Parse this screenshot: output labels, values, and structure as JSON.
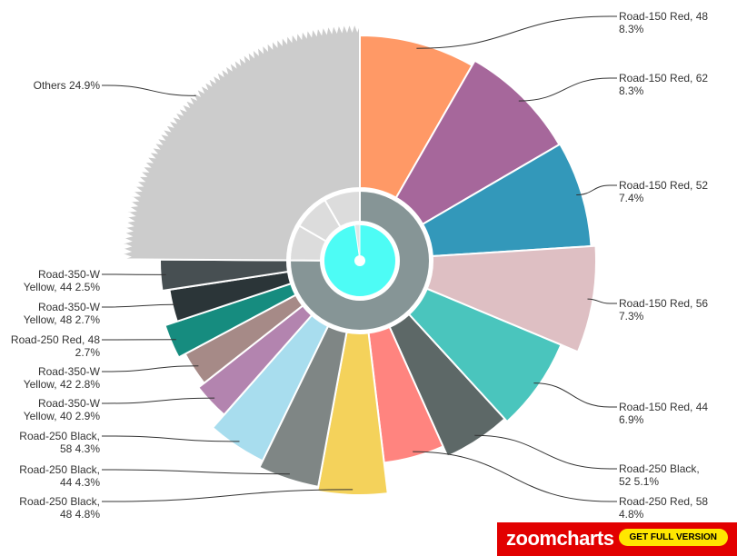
{
  "chart_data": {
    "type": "pie",
    "slices": [
      {
        "label": "Road-150 Red, 48",
        "value": 8.3,
        "color": "#FF9966"
      },
      {
        "label": "Road-150 Red, 62",
        "value": 8.3,
        "color": "#A6679B"
      },
      {
        "label": "Road-150 Red, 52",
        "value": 7.4,
        "color": "#3398BA"
      },
      {
        "label": "Road-150 Red, 56",
        "value": 7.3,
        "color": "#DEBFC3"
      },
      {
        "label": "Road-150 Red, 44",
        "value": 6.9,
        "color": "#4AC5BD"
      },
      {
        "label": "Road-250 Black, 52",
        "value": 5.1,
        "color": "#5D6867"
      },
      {
        "label": "Road-250 Red, 58",
        "value": 4.8,
        "color": "#FF847F"
      },
      {
        "label": "Road-250 Black, 48",
        "value": 4.8,
        "color": "#F4D25B"
      },
      {
        "label": "Road-250 Black, 44",
        "value": 4.3,
        "color": "#7F8685"
      },
      {
        "label": "Road-250 Black, 58",
        "value": 4.3,
        "color": "#A8DDEE"
      },
      {
        "label": "Road-350-W Yellow, 40",
        "value": 2.9,
        "color": "#B384AF"
      },
      {
        "label": "Road-350-W Yellow, 42",
        "value": 2.8,
        "color": "#A68A87"
      },
      {
        "label": "Road-250 Red, 48",
        "value": 2.7,
        "color": "#168C7F"
      },
      {
        "label": "Road-350-W Yellow, 48",
        "value": 2.7,
        "color": "#2B3538"
      },
      {
        "label": "Road-350-W Yellow, 44",
        "value": 2.5,
        "color": "#474F52"
      },
      {
        "label": "Others",
        "value": 24.9,
        "color": "#CCCCCC"
      }
    ],
    "labels": [
      {
        "lines": [
          "Road-150 Red, 48",
          "8.3%"
        ]
      },
      {
        "lines": [
          "Road-150 Red, 62",
          "8.3%"
        ]
      },
      {
        "lines": [
          "Road-150 Red, 52",
          "7.4%"
        ]
      },
      {
        "lines": [
          "Road-150 Red, 56",
          "7.3%"
        ]
      },
      {
        "lines": [
          "Road-150 Red, 44",
          "6.9%"
        ]
      },
      {
        "lines": [
          "Road-250 Black,",
          "52 5.1%"
        ]
      },
      {
        "lines": [
          "Road-250 Red, 58",
          "4.8%"
        ]
      },
      {
        "lines": [
          "Road-250 Black,",
          "48 4.8%"
        ]
      },
      {
        "lines": [
          "Road-250 Black,",
          "44 4.3%"
        ]
      },
      {
        "lines": [
          "Road-250 Black,",
          "58 4.3%"
        ]
      },
      {
        "lines": [
          "Road-350-W",
          "Yellow, 40 2.9%"
        ]
      },
      {
        "lines": [
          "Road-350-W",
          "Yellow, 42 2.8%"
        ]
      },
      {
        "lines": [
          "Road-250 Red, 48",
          "2.7%"
        ]
      },
      {
        "lines": [
          "Road-350-W",
          "Yellow, 48 2.7%"
        ]
      },
      {
        "lines": [
          "Road-350-W",
          "Yellow, 44 2.5%"
        ]
      },
      {
        "lines": [
          "Others 24.9%"
        ]
      }
    ],
    "inner_ring": [
      {
        "value": 75.1,
        "color": "#869596"
      },
      {
        "value": 24.9,
        "color": "#DCDCDC"
      }
    ],
    "center": {
      "color": "#4DFCF5"
    }
  },
  "branding": {
    "logo_text": "zoomcharts",
    "button_label": "GET FULL VERSION"
  }
}
